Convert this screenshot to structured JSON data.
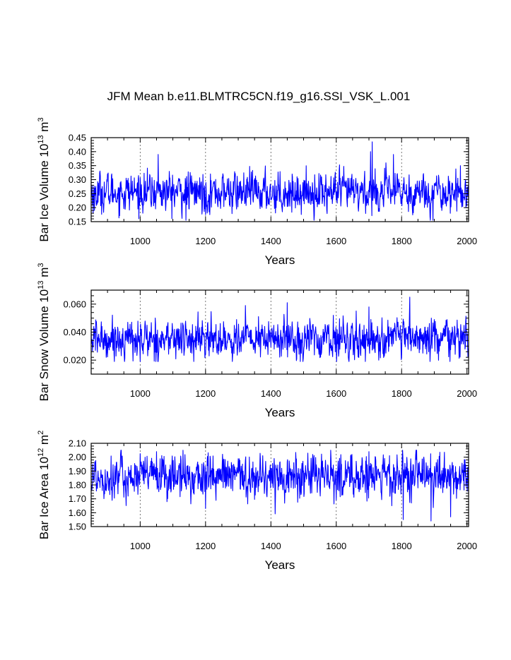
{
  "title": "JFM Mean b.e11.BLMTRC5CN.f19_g16.SSI_VSK_L.001",
  "chart_data": [
    {
      "type": "line",
      "ylabel_text": "Bar Ice Volume 10",
      "ylabel_exp": "13",
      "ylabel_unit": " m",
      "ylabel_unit_exp": "3",
      "xlabel": "Years",
      "xlim": [
        850,
        2005
      ],
      "ylim": [
        0.15,
        0.45
      ],
      "xticks": [
        1000,
        1200,
        1400,
        1600,
        1800,
        2000
      ],
      "yticks": [
        "0.15",
        "0.20",
        "0.25",
        "0.30",
        "0.35",
        "0.40",
        "0.45"
      ],
      "yticks_values": [
        0.15,
        0.2,
        0.25,
        0.3,
        0.35,
        0.4,
        0.45
      ],
      "grid_x": [
        1000,
        1200,
        1400,
        1600,
        1800
      ],
      "color": "#0000ff",
      "mean": 0.255,
      "sd": 0.033,
      "min": 0.155,
      "max": 0.435,
      "peaks": [
        [
          1055,
          0.39
        ],
        [
          1140,
          0.155
        ],
        [
          1710,
          0.435
        ],
        [
          1705,
          0.4
        ],
        [
          1775,
          0.39
        ],
        [
          860,
          0.19
        ],
        [
          1200,
          0.175
        ]
      ]
    },
    {
      "type": "line",
      "ylabel_text": "Bar Snow Volume 10",
      "ylabel_exp": "13",
      "ylabel_unit": " m",
      "ylabel_unit_exp": "3",
      "xlabel": "Years",
      "xlim": [
        850,
        2005
      ],
      "ylim": [
        0.01,
        0.07
      ],
      "xticks": [
        1000,
        1200,
        1400,
        1600,
        1800,
        2000
      ],
      "yticks": [
        "0.020",
        "0.040",
        "0.060"
      ],
      "yticks_values": [
        0.02,
        0.04,
        0.06
      ],
      "grid_x": [
        1000,
        1200,
        1400,
        1600,
        1800
      ],
      "color": "#0000ff",
      "mean": 0.035,
      "sd": 0.0065,
      "min": 0.019,
      "max": 0.065,
      "peaks": [
        [
          1825,
          0.065
        ],
        [
          1450,
          0.061
        ],
        [
          1322,
          0.059
        ],
        [
          1000,
          0.019
        ],
        [
          1948,
          0.019
        ],
        [
          1700,
          0.058
        ]
      ]
    },
    {
      "type": "line",
      "ylabel_text": "Bar Ice Area 10",
      "ylabel_exp": "12",
      "ylabel_unit": " m",
      "ylabel_unit_exp": "2",
      "xlabel": "Years",
      "xlim": [
        850,
        2005
      ],
      "ylim": [
        1.5,
        2.1
      ],
      "xticks": [
        1000,
        1200,
        1400,
        1600,
        1800,
        2000
      ],
      "yticks": [
        "1.50",
        "1.60",
        "1.70",
        "1.80",
        "1.90",
        "2.00",
        "2.10"
      ],
      "yticks_values": [
        1.5,
        1.6,
        1.7,
        1.8,
        1.9,
        2.0,
        2.1
      ],
      "grid_x": [
        1000,
        1200,
        1400,
        1600,
        1800
      ],
      "color": "#0000ff",
      "mean": 1.86,
      "sd": 0.075,
      "min": 1.54,
      "max": 2.05,
      "peaks": [
        [
          1805,
          1.55
        ],
        [
          1890,
          1.54
        ],
        [
          1950,
          1.57
        ],
        [
          1200,
          1.63
        ],
        [
          1700,
          2.04
        ],
        [
          1050,
          2.04
        ],
        [
          1770,
          1.65
        ]
      ]
    }
  ]
}
